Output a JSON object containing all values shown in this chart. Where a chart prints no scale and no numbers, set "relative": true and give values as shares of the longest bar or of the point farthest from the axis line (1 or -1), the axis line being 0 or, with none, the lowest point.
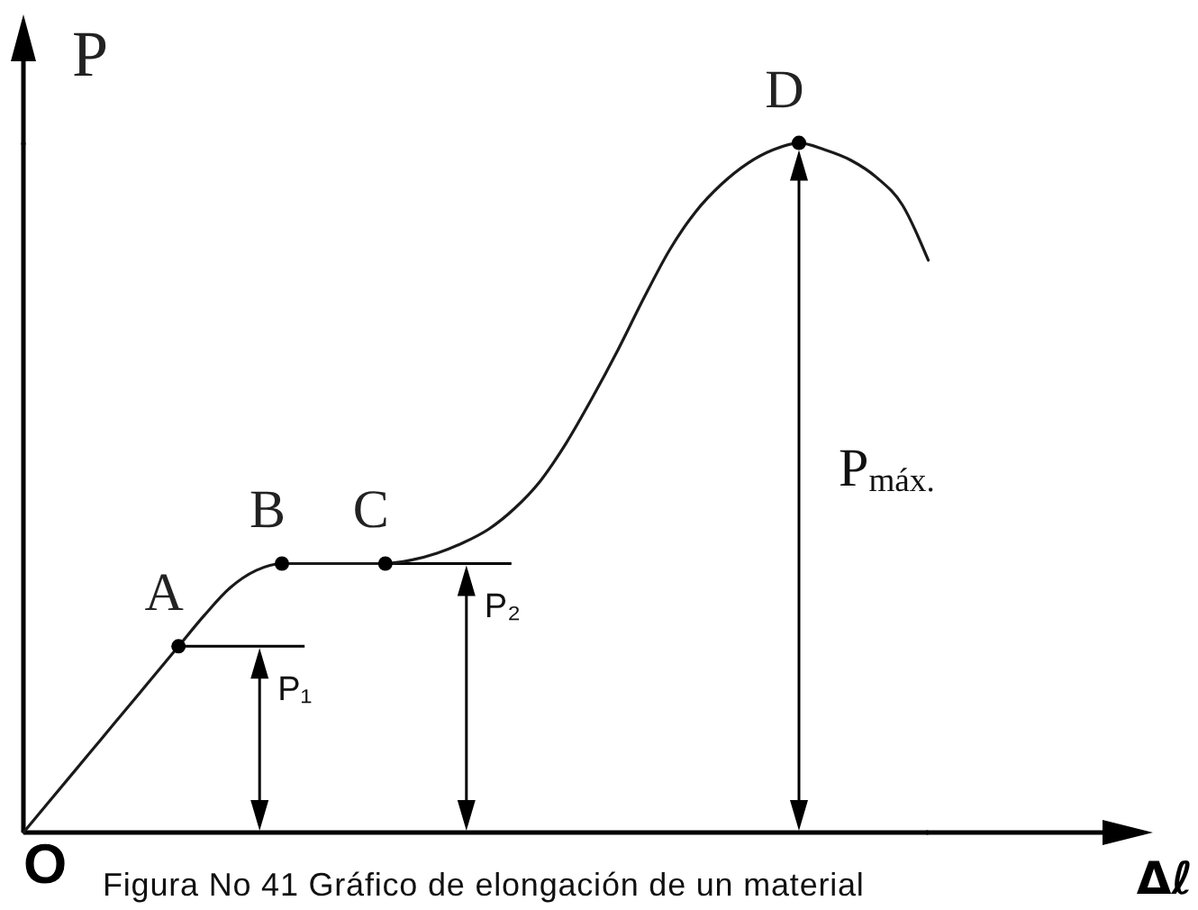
{
  "chart_data": {
    "type": "line",
    "relative": true,
    "ylabel": "P",
    "xlabel": "Δℓ",
    "categories": [
      null,
      null,
      null,
      null,
      null,
      null,
      null,
      null,
      null,
      null,
      null,
      null,
      null,
      null,
      null,
      null,
      null,
      null,
      null,
      null,
      null,
      null,
      null,
      null,
      null,
      null,
      null,
      null,
      null,
      null,
      null,
      null,
      null,
      null,
      null,
      null
    ],
    "series": [
      {
        "color": "#1a1a1a",
        "values": [
          0,
          0.045,
          0.09,
          0.135,
          0.18,
          0.225,
          0.27,
          0.315,
          0.355,
          0.38,
          0.39,
          0.39,
          0.39,
          0.39,
          0.39,
          0.395,
          0.405,
          0.42,
          0.44,
          0.47,
          0.51,
          0.565,
          0.63,
          0.7,
          0.775,
          0.845,
          0.9,
          0.94,
          0.97,
          0.99,
          1,
          0.99,
          0.975,
          0.95,
          0.91,
          0.83
        ]
      },
      {
        "marker": "circle",
        "color": "#000000",
        "values": [
          null,
          null,
          null,
          null,
          null,
          null,
          0.27,
          null,
          null,
          null,
          0.39,
          null,
          null,
          null,
          0.39,
          null,
          null,
          null,
          null,
          null,
          null,
          null,
          null,
          null,
          null,
          null,
          null,
          null,
          null,
          null,
          1,
          null,
          null,
          null,
          null,
          null
        ]
      }
    ],
    "ref_lines": [
      {
        "axis": "y",
        "value": 0.27,
        "label": "P₁",
        "color": "#000000"
      },
      {
        "axis": "y",
        "value": 0.39,
        "label": "P₂",
        "color": "#000000"
      }
    ],
    "annotations": [
      {
        "text": "A",
        "y": 0.27
      },
      {
        "text": "B",
        "y": 0.39
      },
      {
        "text": "C",
        "y": 0.39
      },
      {
        "text": "D",
        "y": 1
      },
      "O",
      "P$_{máx.}$",
      "Figura No 41 Gráfico de elongación de un material"
    ]
  }
}
